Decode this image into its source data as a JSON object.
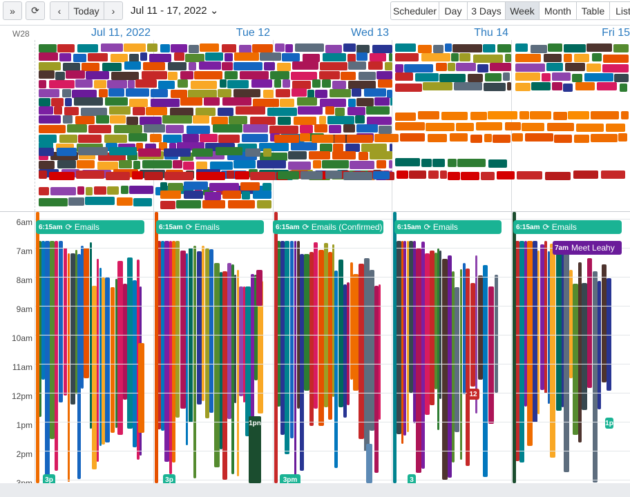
{
  "toolbar": {
    "collapse_icon": "»",
    "refresh_icon": "⟳",
    "prev_icon": "‹",
    "today_label": "Today",
    "next_icon": "›",
    "date_range": "Jul 11 - 17, 2022",
    "range_dropdown_icon": "⌄",
    "views": [
      "Scheduler",
      "Day",
      "3 Days",
      "Week",
      "Month",
      "Table",
      "List"
    ],
    "active_view": "Week"
  },
  "week_number": "W28",
  "days": [
    "Jul 11, 2022",
    "Tue 12",
    "Wed 13",
    "Thu 14",
    "Fri 15"
  ],
  "hours": [
    "6am",
    "7am",
    "8am",
    "9am",
    "10am",
    "11am",
    "12pm",
    "1pm",
    "2pm",
    "3pm"
  ],
  "events": {
    "emails": [
      {
        "time": "6:15am",
        "title": "Emails"
      },
      {
        "time": "6:15am",
        "title": "Emails"
      },
      {
        "time": "6:15am",
        "title": "Emails (Confirmed)"
      },
      {
        "time": "6:15am",
        "title": "Emails"
      },
      {
        "time": "6:15am",
        "title": "Emails"
      }
    ],
    "meet": {
      "time": "7am",
      "title": "Meet Leahy"
    },
    "badge_12": "12",
    "badge_3pm_mon": "3p",
    "badge_3pm_tue": "3p",
    "badge_3pm_wed": "3pm",
    "badge_3pm_thu": "3",
    "badge_1pn": "1pn",
    "badge_1p_fri": "1p"
  },
  "colors": {
    "accent": "#2b7bc0",
    "emails": "#1ab394",
    "meet": "#6a1b9a"
  }
}
